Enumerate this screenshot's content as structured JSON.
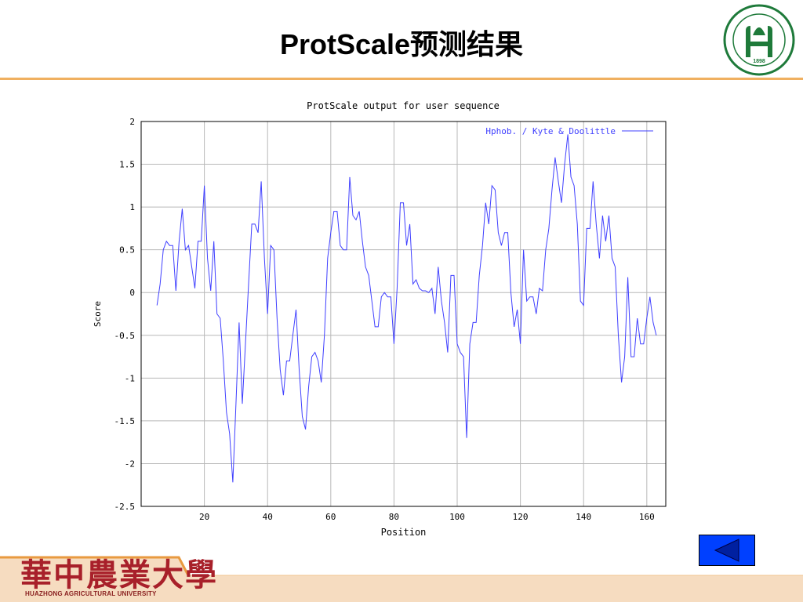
{
  "slide": {
    "title": "ProtScale预测结果",
    "university_logo_text": "華中農業大學",
    "university_logo_subtitle": "HUAZHONG AGRICULTURAL UNIVERSITY",
    "emblem_year": "1898",
    "emblem_ring_text": "HUAZHONG AGRICULTURAL UNIVERSITY",
    "accent_color": "#f0b060",
    "logo_red": "#a8202a",
    "button_color": "#0040ff"
  },
  "nav": {
    "back_icon": "triangle-left-icon"
  },
  "chart_data": {
    "type": "line",
    "title": "ProtScale output for user sequence",
    "xlabel": "Position",
    "ylabel": "Score",
    "xlim": [
      0,
      166
    ],
    "ylim": [
      -2.5,
      2
    ],
    "xticks": [
      20,
      40,
      60,
      80,
      100,
      120,
      140,
      160
    ],
    "yticks": [
      2,
      1.5,
      1,
      0.5,
      0,
      -0.5,
      -1,
      -1.5,
      -2,
      -2.5
    ],
    "grid": true,
    "legend_position": "top-right",
    "series": [
      {
        "name": "Hphob. / Kyte & Doolittle",
        "color": "#4040ff",
        "x": [
          5,
          6,
          7,
          8,
          9,
          10,
          11,
          12,
          13,
          14,
          15,
          16,
          17,
          18,
          19,
          20,
          21,
          22,
          23,
          24,
          25,
          26,
          27,
          28,
          29,
          30,
          31,
          32,
          33,
          34,
          35,
          36,
          37,
          38,
          39,
          40,
          41,
          42,
          43,
          44,
          45,
          46,
          47,
          48,
          49,
          50,
          51,
          52,
          53,
          54,
          55,
          56,
          57,
          58,
          59,
          60,
          61,
          62,
          63,
          64,
          65,
          66,
          67,
          68,
          69,
          70,
          71,
          72,
          73,
          74,
          75,
          76,
          77,
          78,
          79,
          80,
          81,
          82,
          83,
          84,
          85,
          86,
          87,
          88,
          89,
          90,
          91,
          92,
          93,
          94,
          95,
          96,
          97,
          98,
          99,
          100,
          101,
          102,
          103,
          104,
          105,
          106,
          107,
          108,
          109,
          110,
          111,
          112,
          113,
          114,
          115,
          116,
          117,
          118,
          119,
          120,
          121,
          122,
          123,
          124,
          125,
          126,
          127,
          128,
          129,
          130,
          131,
          132,
          133,
          134,
          135,
          136,
          137,
          138,
          139,
          140,
          141,
          142,
          143,
          144,
          145,
          146,
          147,
          148,
          149,
          150,
          151,
          152,
          153,
          154,
          155,
          156,
          157,
          158,
          159,
          160,
          161,
          162,
          163
        ],
        "y": [
          -0.15,
          0.1,
          0.5,
          0.6,
          0.55,
          0.55,
          0.02,
          0.6,
          0.98,
          0.5,
          0.55,
          0.3,
          0.05,
          0.6,
          0.6,
          1.25,
          0.4,
          0.02,
          0.6,
          -0.25,
          -0.3,
          -0.8,
          -1.4,
          -1.65,
          -2.22,
          -1.3,
          -0.35,
          -1.3,
          -0.6,
          0.1,
          0.8,
          0.8,
          0.7,
          1.3,
          0.4,
          -0.25,
          0.55,
          0.5,
          -0.3,
          -0.9,
          -1.2,
          -0.8,
          -0.8,
          -0.5,
          -0.2,
          -0.9,
          -1.45,
          -1.6,
          -1.1,
          -0.75,
          -0.7,
          -0.8,
          -1.05,
          -0.5,
          0.4,
          0.7,
          0.95,
          0.95,
          0.55,
          0.5,
          0.5,
          1.35,
          0.9,
          0.85,
          0.95,
          0.6,
          0.3,
          0.2,
          -0.1,
          -0.4,
          -0.4,
          -0.05,
          0,
          -0.05,
          -0.05,
          -0.6,
          0.05,
          1.05,
          1.05,
          0.55,
          0.8,
          0.1,
          0.15,
          0.05,
          0.02,
          0.02,
          0,
          0.05,
          -0.25,
          0.3,
          -0.1,
          -0.35,
          -0.7,
          0.2,
          0.2,
          -0.6,
          -0.7,
          -0.75,
          -1.7,
          -0.6,
          -0.35,
          -0.35,
          0.2,
          0.55,
          1.05,
          0.8,
          1.25,
          1.2,
          0.7,
          0.55,
          0.7,
          0.7,
          0,
          -0.4,
          -0.2,
          -0.6,
          0.5,
          -0.1,
          -0.05,
          -0.05,
          -0.25,
          0.05,
          0.02,
          0.5,
          0.75,
          1.2,
          1.58,
          1.3,
          1.05,
          1.5,
          1.85,
          1.35,
          1.25,
          0.8,
          -0.1,
          -0.15,
          0.75,
          0.75,
          1.3,
          0.8,
          0.4,
          0.9,
          0.6,
          0.9,
          0.4,
          0.3,
          -0.5,
          -1.05,
          -0.75,
          0.18,
          -0.75,
          -0.75,
          -0.3,
          -0.6,
          -0.6,
          -0.3,
          -0.05,
          -0.35,
          -0.5
        ]
      }
    ]
  }
}
